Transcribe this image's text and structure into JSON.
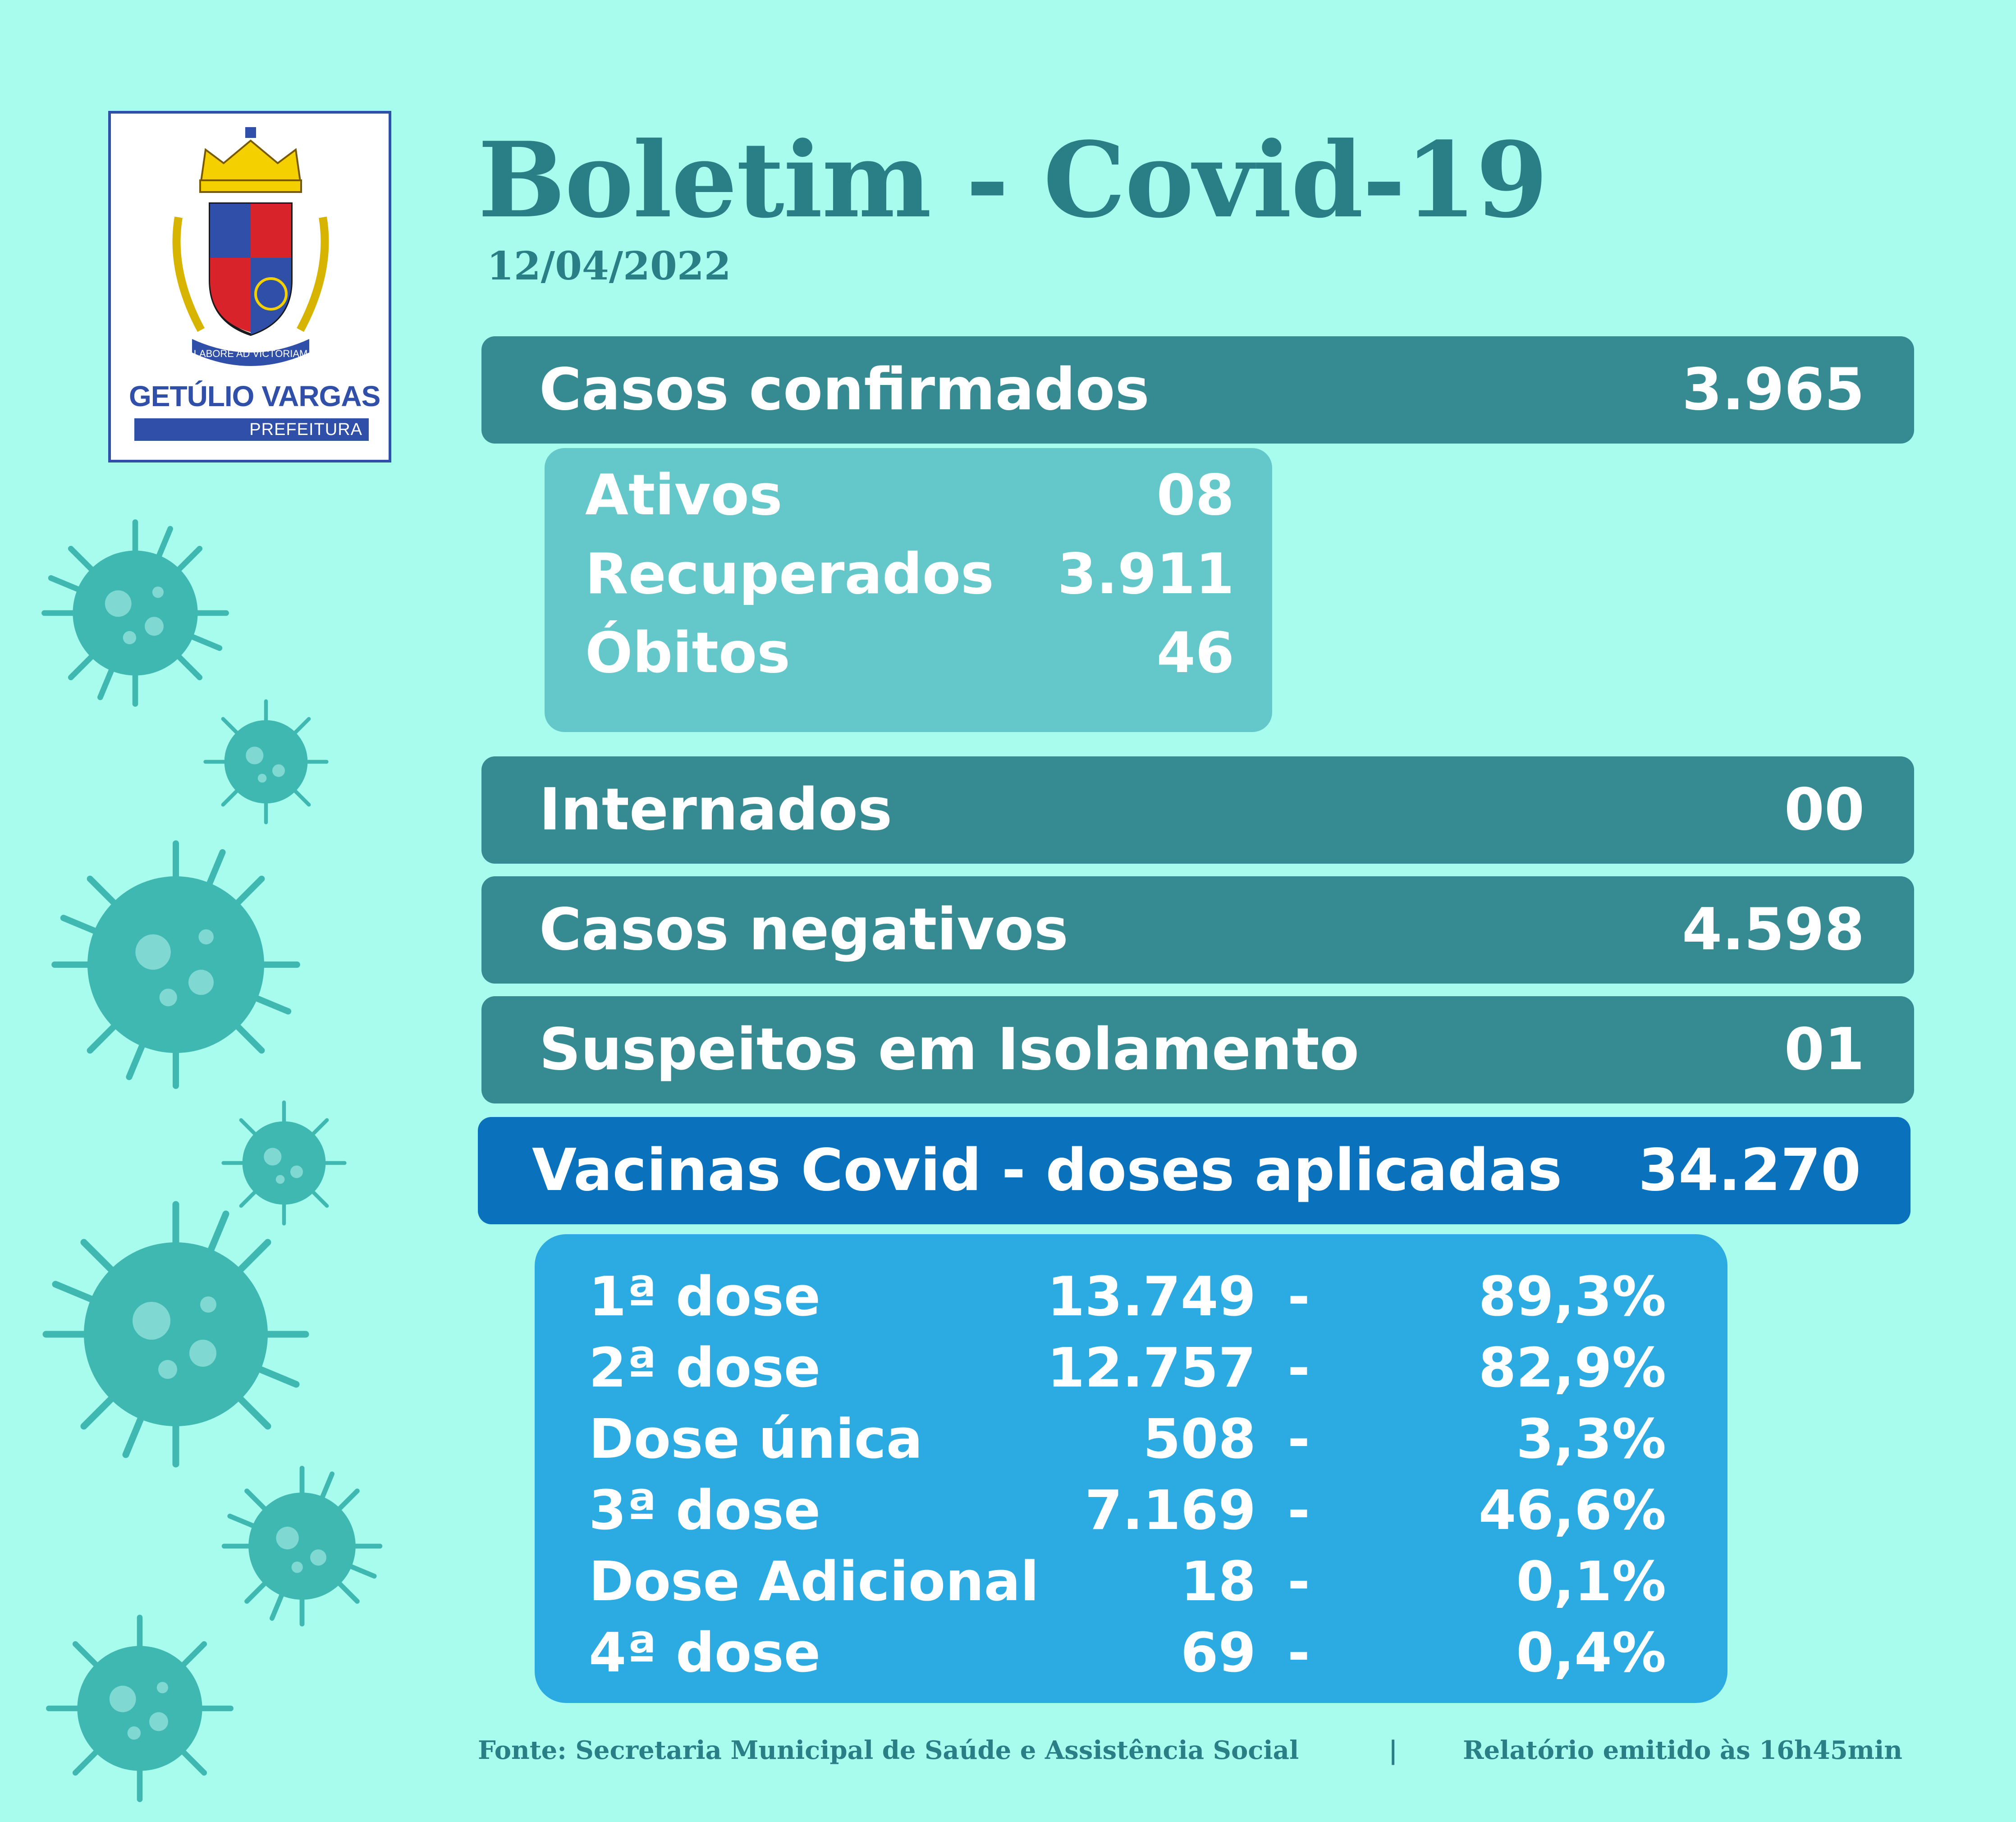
{
  "logo": {
    "motto": "LABORE AD VICTORIAM",
    "name": "GETÚLIO VARGAS",
    "subtitle": "PREFEITURA"
  },
  "header": {
    "title": "Boletim - Covid-19",
    "date": "12/04/2022"
  },
  "casos_confirmados": {
    "label": "Casos confirmados",
    "value": "3.965"
  },
  "casos_detalhe": [
    {
      "label": "Ativos",
      "value": "08"
    },
    {
      "label": "Recuperados",
      "value": "3.911"
    },
    {
      "label": "Óbitos",
      "value": "46"
    }
  ],
  "internados": {
    "label": "Internados",
    "value": "00"
  },
  "casos_negativos": {
    "label": "Casos negativos",
    "value": "4.598"
  },
  "suspeitos": {
    "label": "Suspeitos em Isolamento",
    "value": "01"
  },
  "vacinas": {
    "label": "Vacinas Covid - doses aplicadas",
    "value": "34.270"
  },
  "vacinas_detalhe": [
    {
      "label": "1ª dose",
      "count": "13.749",
      "dash": "-",
      "percent": "89,3%"
    },
    {
      "label": "2ª dose",
      "count": "12.757",
      "dash": "-",
      "percent": "82,9%"
    },
    {
      "label": "Dose única",
      "count": "508",
      "dash": "-",
      "percent": "3,3%"
    },
    {
      "label": "3ª dose",
      "count": "7.169",
      "dash": "-",
      "percent": "46,6%"
    },
    {
      "label": "Dose Adicional",
      "count": "18",
      "dash": "-",
      "percent": "0,1%"
    },
    {
      "label": "4ª dose",
      "count": "69",
      "dash": "-",
      "percent": "0,4%"
    }
  ],
  "footer": {
    "fonte": "Fonte: Secretaria Municipal de Saúde e Assistência Social",
    "separator": "|",
    "relatorio": "Relatório emitido às 16h45min"
  },
  "colors": {
    "background": "#a8fcee",
    "bar": "#368b93",
    "vaccine_bar": "#0a72bd",
    "panel_cases": "#64c8ca",
    "panel_vaccines": "#2caae2",
    "title": "#2a7f86",
    "virus": "#3fb8b2"
  }
}
